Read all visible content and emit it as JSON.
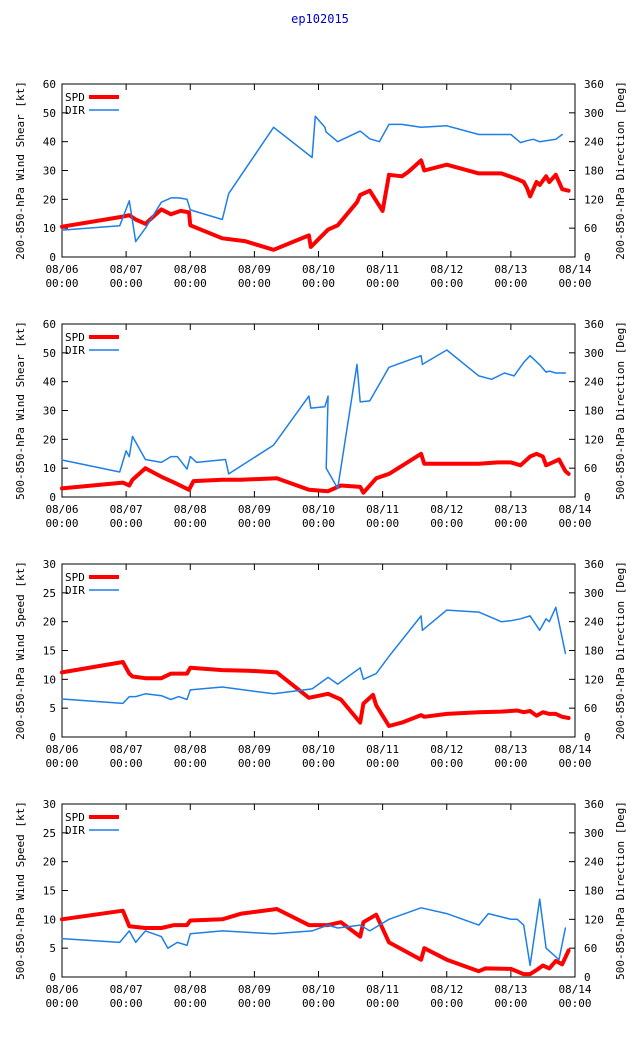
{
  "page_title": "ep102015",
  "colors": {
    "spd": "#ff0000",
    "dir": "#1e7fe6",
    "title": "#0000cc",
    "axis": "#000000"
  },
  "chart_data": [
    {
      "type": "line",
      "ylabel": "200-850-hPa Wind Shear [kt]",
      "y2label": "200-850-hPa Direction [Deg]",
      "ylim": [
        0,
        60
      ],
      "yticks": [
        0,
        10,
        20,
        30,
        40,
        50,
        60
      ],
      "y2lim": [
        0,
        360
      ],
      "y2ticks": [
        0,
        60,
        120,
        180,
        240,
        300,
        360
      ],
      "xlim": [
        0,
        8
      ],
      "xticks": [
        {
          "x": 0,
          "date": "08/06",
          "time": "00:00"
        },
        {
          "x": 1,
          "date": "08/07",
          "time": "00:00"
        },
        {
          "x": 2,
          "date": "08/08",
          "time": "00:00"
        },
        {
          "x": 3,
          "date": "08/09",
          "time": "00:00"
        },
        {
          "x": 4,
          "date": "08/10",
          "time": "00:00"
        },
        {
          "x": 5,
          "date": "08/11",
          "time": "00:00"
        },
        {
          "x": 6,
          "date": "08/12",
          "time": "00:00"
        },
        {
          "x": 7,
          "date": "08/13",
          "time": "00:00"
        },
        {
          "x": 8,
          "date": "08/14",
          "time": "00:00"
        }
      ],
      "series": [
        {
          "name": "SPD",
          "axis": "y",
          "x": [
            0,
            0.95,
            1.05,
            1.15,
            1.3,
            1.55,
            1.7,
            1.85,
            1.98,
            2.0,
            2.5,
            2.85,
            3.3,
            3.85,
            3.88,
            4.15,
            4.3,
            4.6,
            4.65,
            4.8,
            5.0,
            5.1,
            5.3,
            5.4,
            5.6,
            5.65,
            6.0,
            6.5,
            6.85,
            7.1,
            7.2,
            7.25,
            7.3,
            7.4,
            7.45,
            7.55,
            7.6,
            7.7,
            7.8,
            7.9
          ],
          "values": [
            10.5,
            14,
            14.5,
            13,
            11.5,
            16.5,
            14.8,
            16,
            15.5,
            11,
            6.5,
            5.5,
            2.5,
            7.5,
            3.5,
            9.5,
            11,
            19,
            21.5,
            23,
            16,
            28.5,
            28,
            29.5,
            33.5,
            30,
            32,
            29,
            29,
            27,
            26,
            24,
            21,
            26,
            25,
            28,
            26,
            28.5,
            23.5,
            23
          ]
        },
        {
          "name": "DIR",
          "axis": "y2",
          "x": [
            0,
            0.9,
            1.05,
            1.15,
            1.3,
            1.55,
            1.7,
            1.82,
            1.95,
            2.0,
            2.5,
            2.6,
            3.3,
            3.9,
            3.95,
            4.1,
            4.12,
            4.3,
            4.65,
            4.8,
            4.95,
            5.1,
            5.3,
            5.6,
            6.0,
            6.5,
            7.0,
            7.15,
            7.25,
            7.35,
            7.45,
            7.55,
            7.7,
            7.8
          ],
          "values": [
            56,
            65,
            117,
            32,
            60,
            114,
            123,
            123,
            120,
            98,
            78,
            132,
            270,
            207,
            293,
            270,
            260,
            240,
            262,
            246,
            240,
            276,
            276,
            270,
            273,
            255,
            255,
            238,
            242,
            245,
            240,
            242,
            245,
            255
          ]
        }
      ],
      "legend": "top-left"
    },
    {
      "type": "line",
      "ylabel": "500-850-hPa Wind Shear [kt]",
      "y2label": "500-850-hPa Direction [Deg]",
      "ylim": [
        0,
        60
      ],
      "yticks": [
        0,
        10,
        20,
        30,
        40,
        50,
        60
      ],
      "y2lim": [
        0,
        360
      ],
      "y2ticks": [
        0,
        60,
        120,
        180,
        240,
        300,
        360
      ],
      "xlim": [
        0,
        8
      ],
      "xticks": [
        {
          "x": 0,
          "date": "08/06",
          "time": "00:00"
        },
        {
          "x": 1,
          "date": "08/07",
          "time": "00:00"
        },
        {
          "x": 2,
          "date": "08/08",
          "time": "00:00"
        },
        {
          "x": 3,
          "date": "08/09",
          "time": "00:00"
        },
        {
          "x": 4,
          "date": "08/10",
          "time": "00:00"
        },
        {
          "x": 5,
          "date": "08/11",
          "time": "00:00"
        },
        {
          "x": 6,
          "date": "08/12",
          "time": "00:00"
        },
        {
          "x": 7,
          "date": "08/13",
          "time": "00:00"
        },
        {
          "x": 8,
          "date": "08/14",
          "time": "00:00"
        }
      ],
      "series": [
        {
          "name": "SPD",
          "axis": "y",
          "x": [
            0,
            0.95,
            1.05,
            1.1,
            1.3,
            1.55,
            1.75,
            1.98,
            2.05,
            2.5,
            2.8,
            3.35,
            3.85,
            4.15,
            4.35,
            4.65,
            4.7,
            4.9,
            5.1,
            5.6,
            5.65,
            6.0,
            6.5,
            6.8,
            7.0,
            7.15,
            7.3,
            7.4,
            7.5,
            7.55,
            7.65,
            7.75,
            7.85,
            7.9
          ],
          "values": [
            3,
            5,
            4,
            6,
            10,
            7,
            5,
            2.5,
            5.5,
            6,
            6,
            6.5,
            2.5,
            2,
            4,
            3.5,
            1.5,
            6.5,
            8,
            15,
            11.5,
            11.5,
            11.5,
            12,
            12,
            11,
            14,
            15,
            14,
            11,
            12,
            13,
            9,
            8
          ]
        },
        {
          "name": "DIR",
          "axis": "y2",
          "x": [
            0,
            0.9,
            1.0,
            1.05,
            1.1,
            1.3,
            1.55,
            1.7,
            1.8,
            1.95,
            2.0,
            2.1,
            2.55,
            2.6,
            3.3,
            3.85,
            3.88,
            4.1,
            4.15,
            4.12,
            4.3,
            4.6,
            4.65,
            4.8,
            5.1,
            5.6,
            5.62,
            6.0,
            6.5,
            6.7,
            6.9,
            7.05,
            7.2,
            7.3,
            7.45,
            7.55,
            7.6,
            7.7,
            7.85
          ],
          "values": [
            77,
            52,
            96,
            84,
            126,
            78,
            72,
            84,
            84,
            58,
            84,
            72,
            78,
            48,
            108,
            210,
            185,
            188,
            210,
            60,
            18,
            276,
            198,
            200,
            270,
            294,
            276,
            306,
            252,
            245,
            258,
            252,
            280,
            294,
            275,
            260,
            262,
            258,
            258
          ]
        }
      ],
      "legend": "top-left"
    },
    {
      "type": "line",
      "ylabel": "200-850-hPa Wind Speed [kt]",
      "y2label": "200-850-hPa Direction [Deg]",
      "ylim": [
        0,
        30
      ],
      "yticks": [
        0,
        5,
        10,
        15,
        20,
        25,
        30
      ],
      "y2lim": [
        0,
        360
      ],
      "y2ticks": [
        0,
        60,
        120,
        180,
        240,
        300,
        360
      ],
      "xlim": [
        0,
        8
      ],
      "xticks": [
        {
          "x": 0,
          "date": "08/06",
          "time": "00:00"
        },
        {
          "x": 1,
          "date": "08/07",
          "time": "00:00"
        },
        {
          "x": 2,
          "date": "08/08",
          "time": "00:00"
        },
        {
          "x": 3,
          "date": "08/09",
          "time": "00:00"
        },
        {
          "x": 4,
          "date": "08/10",
          "time": "00:00"
        },
        {
          "x": 5,
          "date": "08/11",
          "time": "00:00"
        },
        {
          "x": 6,
          "date": "08/12",
          "time": "00:00"
        },
        {
          "x": 7,
          "date": "08/13",
          "time": "00:00"
        },
        {
          "x": 8,
          "date": "08/14",
          "time": "00:00"
        }
      ],
      "series": [
        {
          "name": "SPD",
          "axis": "y",
          "x": [
            0,
            0.95,
            1.05,
            1.1,
            1.3,
            1.55,
            1.7,
            1.95,
            2.0,
            2.5,
            2.9,
            3.35,
            3.85,
            4.15,
            4.35,
            4.65,
            4.7,
            4.85,
            4.9,
            5.1,
            5.3,
            5.6,
            5.65,
            6.0,
            6.5,
            6.85,
            7.1,
            7.2,
            7.3,
            7.4,
            7.5,
            7.6,
            7.7,
            7.8,
            7.9
          ],
          "values": [
            11.2,
            13,
            11,
            10.5,
            10.2,
            10.2,
            11,
            11,
            12,
            11.6,
            11.5,
            11.2,
            6.8,
            7.5,
            6.5,
            2.5,
            5.8,
            7.3,
            5.5,
            1.9,
            2.5,
            3.8,
            3.5,
            4,
            4.3,
            4.4,
            4.6,
            4.3,
            4.5,
            3.7,
            4.3,
            4,
            4,
            3.5,
            3.3
          ]
        },
        {
          "name": "DIR",
          "axis": "y2",
          "x": [
            0,
            0.95,
            1.05,
            1.15,
            1.3,
            1.55,
            1.7,
            1.82,
            1.95,
            2.0,
            2.5,
            3.3,
            3.9,
            4.15,
            4.3,
            4.65,
            4.7,
            4.9,
            5.1,
            5.6,
            5.62,
            6.0,
            6.5,
            6.85,
            7.0,
            7.15,
            7.3,
            7.45,
            7.55,
            7.6,
            7.7,
            7.85
          ],
          "values": [
            79,
            70,
            84,
            84,
            90,
            86,
            78,
            84,
            78,
            98,
            104,
            90,
            100,
            124,
            110,
            144,
            120,
            132,
            168,
            252,
            222,
            264,
            260,
            240,
            242,
            246,
            252,
            222,
            246,
            240,
            270,
            174
          ]
        }
      ],
      "legend": "top-left"
    },
    {
      "type": "line",
      "ylabel": "500-850-hPa Wind Speed [kt]",
      "y2label": "500-850-hPa Direction [Deg]",
      "ylim": [
        0,
        30
      ],
      "yticks": [
        0,
        5,
        10,
        15,
        20,
        25,
        30
      ],
      "y2lim": [
        0,
        360
      ],
      "y2ticks": [
        0,
        60,
        120,
        180,
        240,
        300,
        360
      ],
      "xlim": [
        0,
        8
      ],
      "xticks": [
        {
          "x": 0,
          "date": "08/06",
          "time": "00:00"
        },
        {
          "x": 1,
          "date": "08/07",
          "time": "00:00"
        },
        {
          "x": 2,
          "date": "08/08",
          "time": "00:00"
        },
        {
          "x": 3,
          "date": "08/09",
          "time": "00:00"
        },
        {
          "x": 4,
          "date": "08/10",
          "time": "00:00"
        },
        {
          "x": 5,
          "date": "08/11",
          "time": "00:00"
        },
        {
          "x": 6,
          "date": "08/12",
          "time": "00:00"
        },
        {
          "x": 7,
          "date": "08/13",
          "time": "00:00"
        },
        {
          "x": 8,
          "date": "08/14",
          "time": "00:00"
        }
      ],
      "series": [
        {
          "name": "SPD",
          "axis": "y",
          "x": [
            0,
            0.95,
            1.05,
            1.3,
            1.55,
            1.75,
            1.95,
            2.0,
            2.5,
            2.8,
            3.35,
            3.85,
            4.15,
            4.35,
            4.65,
            4.7,
            4.9,
            5.1,
            5.6,
            5.65,
            6.0,
            6.5,
            6.6,
            7.0,
            7.2,
            7.3,
            7.4,
            7.5,
            7.6,
            7.7,
            7.8,
            7.9
          ],
          "values": [
            10,
            11.5,
            8.8,
            8.5,
            8.5,
            9,
            9,
            9.8,
            10,
            11,
            11.8,
            9,
            9,
            9.5,
            7,
            9.5,
            10.8,
            6,
            3,
            5,
            3,
            1,
            1.5,
            1.4,
            0.5,
            0.5,
            1.2,
            2,
            1.5,
            2.8,
            2.2,
            4.6
          ]
        },
        {
          "name": "DIR",
          "axis": "y2",
          "x": [
            0,
            0.9,
            1.05,
            1.15,
            1.3,
            1.55,
            1.65,
            1.8,
            1.95,
            2.0,
            2.5,
            3.3,
            3.9,
            4.15,
            4.3,
            4.65,
            4.8,
            5.1,
            5.6,
            6.0,
            6.5,
            6.65,
            7.0,
            7.1,
            7.2,
            7.3,
            7.45,
            7.55,
            7.65,
            7.75,
            7.85
          ],
          "values": [
            80,
            72,
            96,
            72,
            96,
            84,
            60,
            72,
            66,
            90,
            96,
            90,
            96,
            108,
            102,
            108,
            96,
            120,
            144,
            132,
            108,
            132,
            120,
            120,
            108,
            24,
            162,
            60,
            48,
            36,
            102
          ]
        }
      ],
      "legend": "top-left"
    }
  ]
}
